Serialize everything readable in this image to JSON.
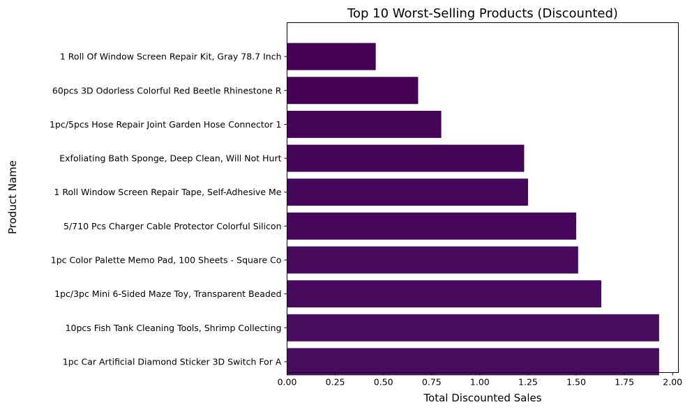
{
  "chart_data": {
    "type": "bar",
    "orientation": "horizontal",
    "title": "Top 10 Worst-Selling Products (Discounted)",
    "xlabel": "Total Discounted Sales",
    "ylabel": "Product Name",
    "xlim": [
      0,
      2.03
    ],
    "xticks": [
      0.0,
      0.25,
      0.5,
      0.75,
      1.0,
      1.25,
      1.5,
      1.75,
      2.0
    ],
    "xtick_labels": [
      "0.00",
      "0.25",
      "0.50",
      "0.75",
      "1.00",
      "1.25",
      "1.50",
      "1.75",
      "2.00"
    ],
    "grid": false,
    "legend": "none",
    "categories": [
      "1 Roll Of Window Screen Repair Kit, Gray 78.7 Inch",
      "60pcs 3D Odorless Colorful Red Beetle Rhinestone R",
      "1pc/5pcs Hose Repair Joint Garden Hose Connector 1",
      "Exfoliating Bath Sponge, Deep Clean, Will Not Hurt",
      "1 Roll Window Screen Repair Tape, Self-Adhesive Me",
      "5/710 Pcs Charger Cable Protector Colorful Silicon",
      "1pc Color Palette Memo Pad, 100 Sheets - Square Co",
      "1pc/3pc Mini 6-Sided Maze Toy, Transparent Beaded ",
      "10pcs Fish Tank Cleaning Tools, Shrimp Collecting ",
      "1pc Car Artificial Diamond Sticker 3D Switch For A"
    ],
    "values": [
      0.46,
      0.68,
      0.8,
      1.23,
      1.25,
      1.5,
      1.51,
      1.63,
      1.93,
      1.93
    ],
    "colors": [
      "#440154",
      "#440154",
      "#450457",
      "#450457",
      "#46075a",
      "#46075a",
      "#470a5c",
      "#470a5c",
      "#480d5f",
      "#480d5f"
    ]
  }
}
